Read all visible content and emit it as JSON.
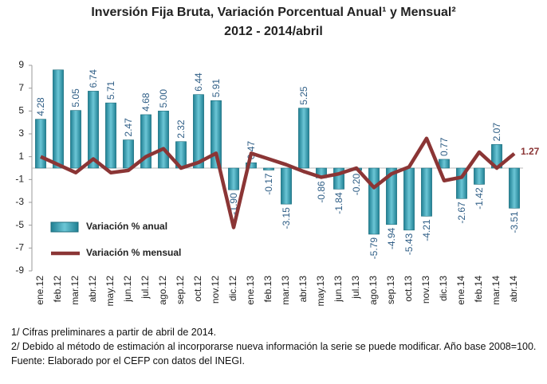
{
  "chart_data": {
    "type": "bar_line",
    "title": "Inversión Fija Bruta, Variación Porcentual Anual¹ y Mensual²",
    "subtitle": "2012 - 2014/abril",
    "categories": [
      "ene.12",
      "feb.12",
      "mar.12",
      "abr.12",
      "may.12",
      "jun.12",
      "jul.12",
      "ago.12",
      "sep.12",
      "oct.12",
      "nov.12",
      "dic.12",
      "ene.13",
      "feb.13",
      "mar.13",
      "abr.13",
      "may.13",
      "jun.13",
      "jul.13",
      "ago.13",
      "sep.13",
      "oct.13",
      "nov.13",
      "dic.13",
      "ene.14",
      "feb.14",
      "mar.14",
      "abr.14"
    ],
    "series": [
      {
        "name": "Variación % anual",
        "type": "bar",
        "color": "#31a2b8",
        "values": [
          4.28,
          8.6,
          5.05,
          6.74,
          5.71,
          2.47,
          4.68,
          5.0,
          2.32,
          6.44,
          5.91,
          -1.9,
          0.47,
          -0.17,
          -3.15,
          5.25,
          -0.86,
          -1.84,
          -0.2,
          -5.79,
          -4.94,
          -5.43,
          -4.21,
          0.77,
          -2.67,
          -1.42,
          2.07,
          -3.51
        ],
        "value_labels": [
          "4.28",
          null,
          "5.05",
          "6.74",
          "5.71",
          "2.47",
          "4.68",
          "5.00",
          "2.32",
          "6.44",
          "5.91",
          "-1.90",
          "0.47",
          "-0.17",
          "-3.15",
          "5.25",
          "-0.86",
          "-1.84",
          "-0.20",
          "-5.79",
          "-4.94",
          "-5.43",
          "-4.21",
          "0.77",
          "-2.67",
          "-1.42",
          "2.07",
          "-3.51"
        ]
      },
      {
        "name": "Variación % mensual",
        "type": "line",
        "color": "#8b3535",
        "values": [
          1.0,
          0.3,
          -0.4,
          0.8,
          -0.4,
          -0.2,
          1.0,
          1.7,
          0.0,
          0.5,
          1.3,
          -5.2,
          1.3,
          0.8,
          0.3,
          -0.3,
          -0.8,
          -0.5,
          0.0,
          -1.7,
          -0.5,
          0.1,
          2.6,
          -1.1,
          -0.8,
          1.4,
          0.0,
          1.27
        ],
        "value_labels": [
          null,
          null,
          null,
          null,
          null,
          null,
          null,
          null,
          null,
          null,
          null,
          null,
          null,
          null,
          null,
          null,
          null,
          null,
          null,
          null,
          null,
          null,
          null,
          null,
          null,
          null,
          null,
          "1.27"
        ]
      }
    ],
    "ylim": [
      -9,
      9
    ],
    "yticks": [
      9,
      7,
      5,
      3,
      1,
      -1,
      -3,
      -5,
      -7,
      -9
    ],
    "grid": false,
    "notes": [
      "1/ Cifras preliminares a partir de abril de 2014.",
      "2/ Debido al método de estimación al incorporarse nueva información la serie se puede modificar. Año base 2008=100.",
      "Fuente: Elaborado por el CEFP con datos del INEGI."
    ]
  }
}
